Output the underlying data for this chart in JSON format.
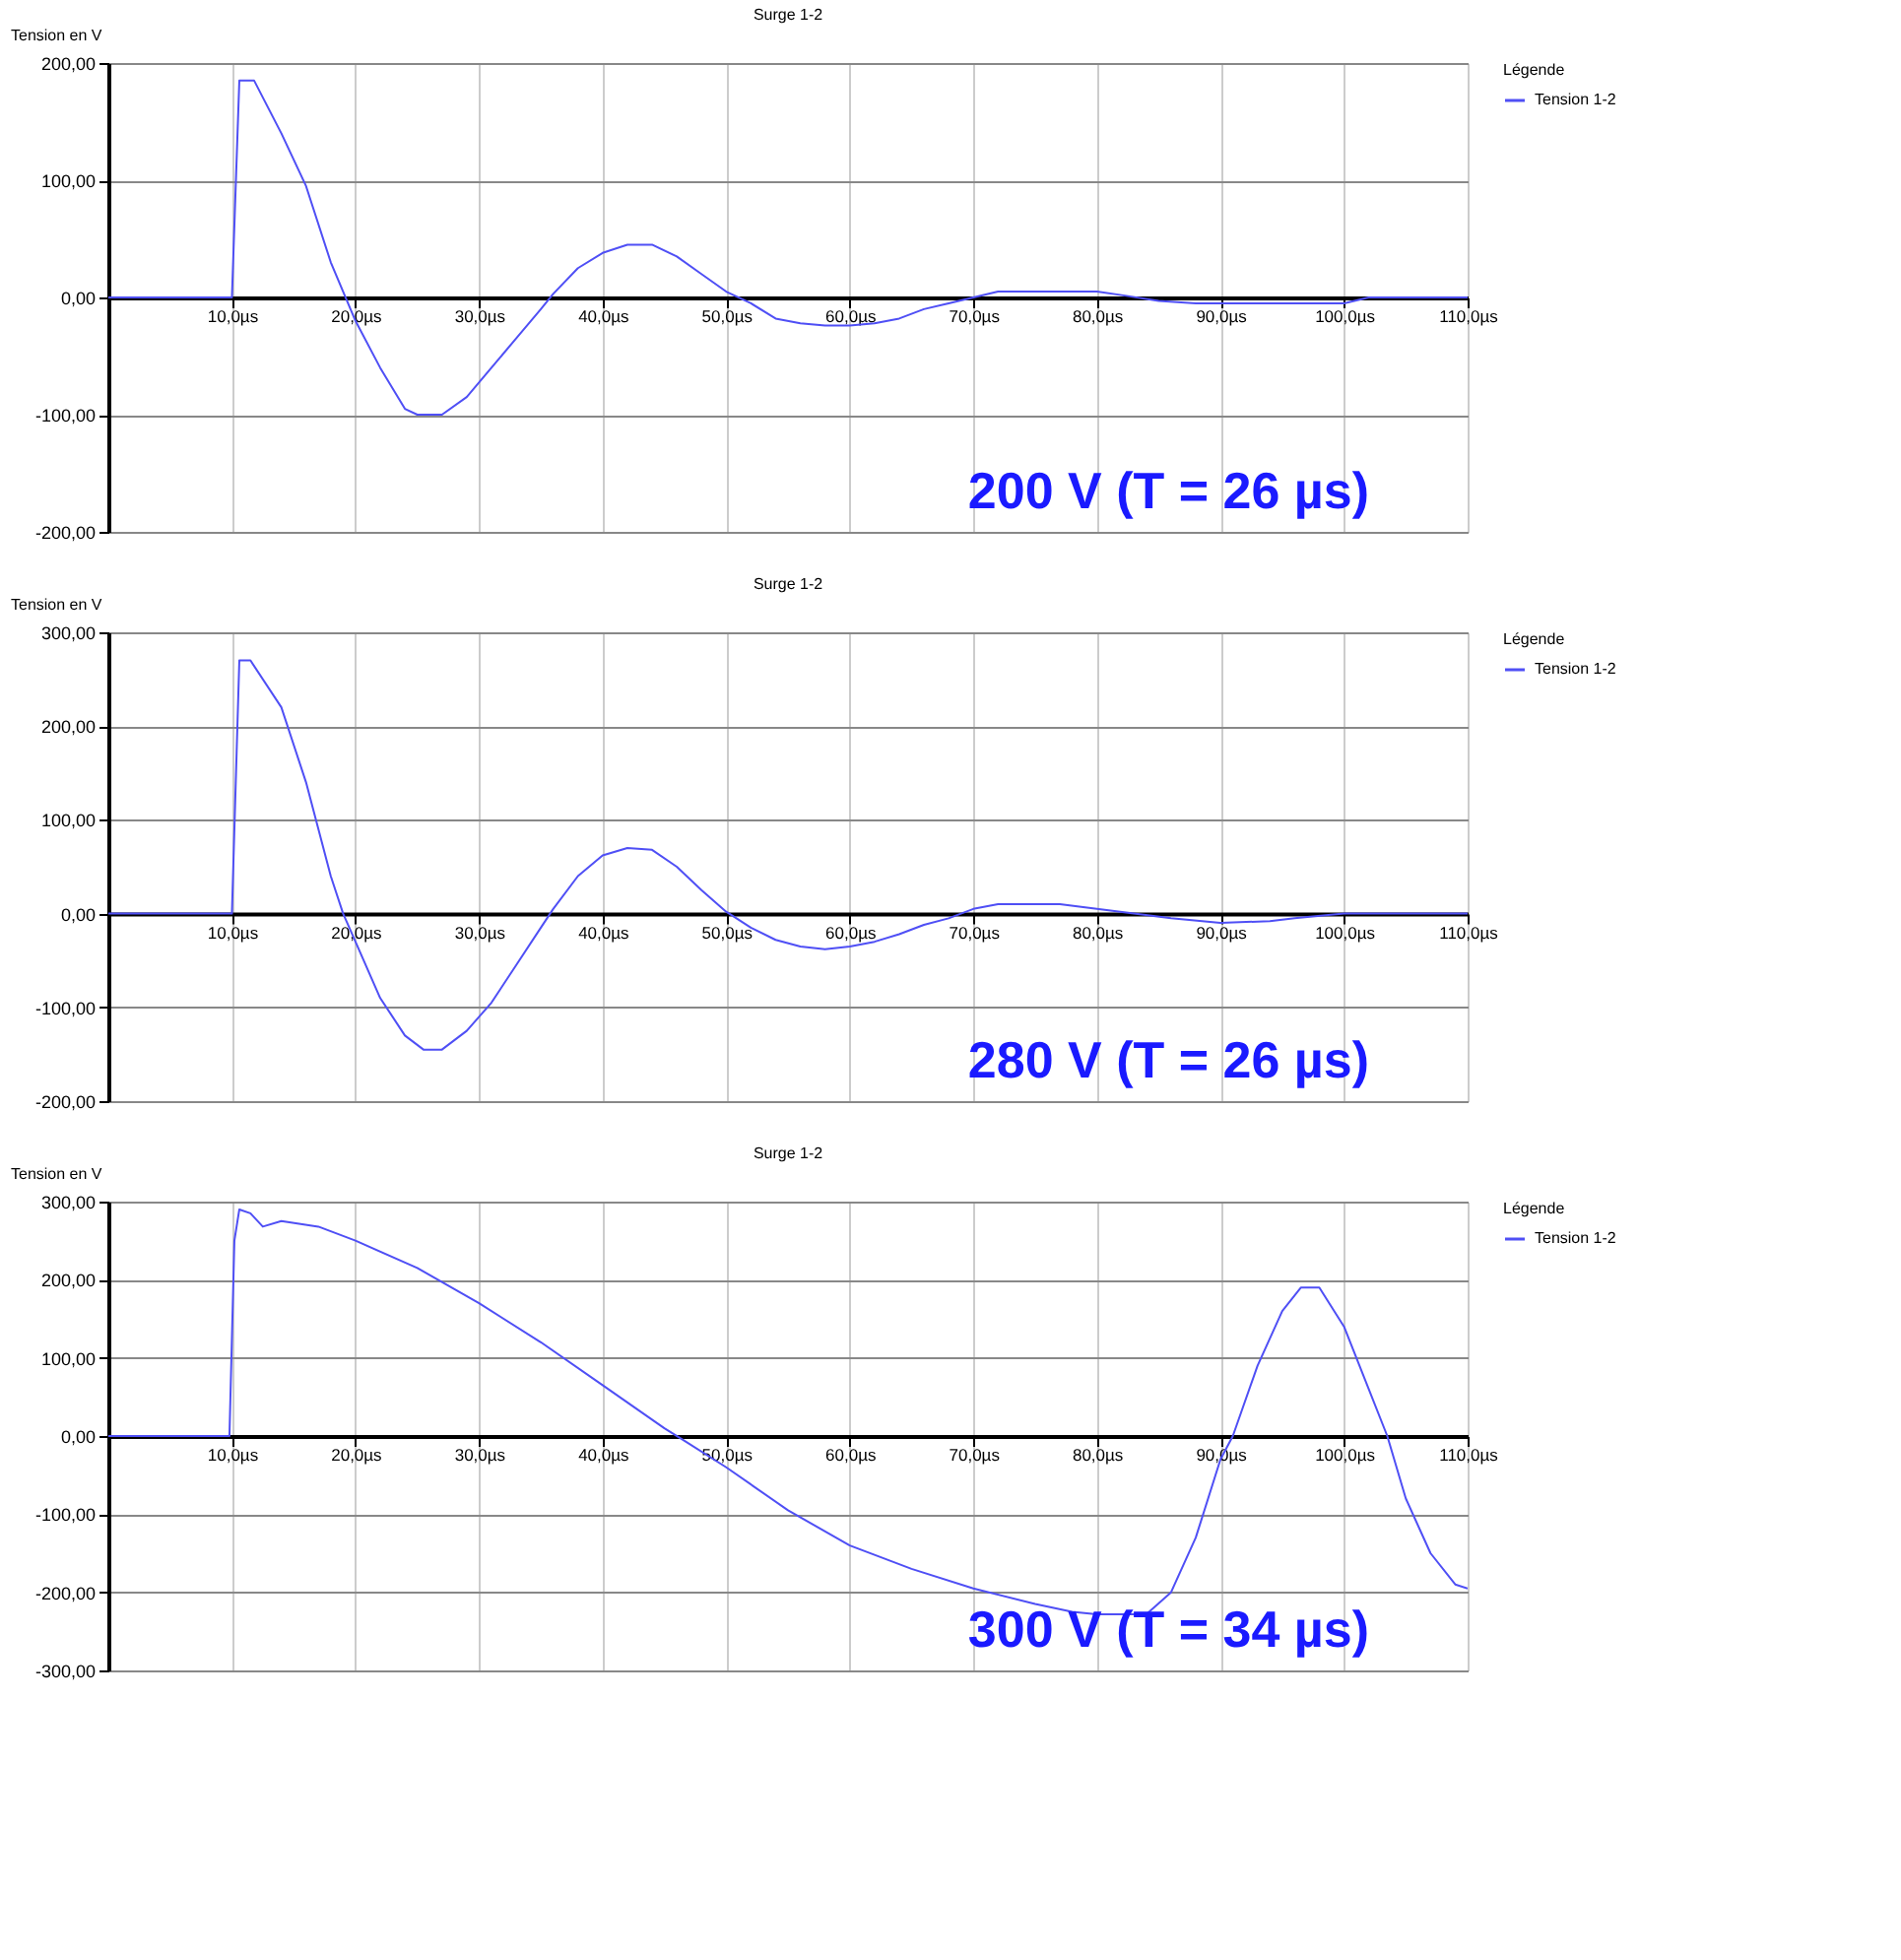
{
  "chart_data": [
    {
      "type": "line",
      "title": "Surge 1-2",
      "ylabel": "Tension en V",
      "legend_title": "Légende",
      "legend": "right",
      "grid": true,
      "x": [
        0,
        9.5,
        10,
        10.6,
        11.8,
        14,
        16,
        18,
        19,
        20,
        22,
        24,
        25,
        27,
        29,
        31,
        33,
        35,
        36,
        38,
        40,
        42,
        44,
        46,
        48,
        50,
        52,
        54,
        56,
        58,
        60,
        62,
        64,
        66,
        68,
        70,
        72,
        76,
        80,
        82,
        85,
        88,
        95,
        100,
        102,
        110
      ],
      "series": [
        {
          "name": "Tension 1-2",
          "color": "#4f4ff5",
          "values": [
            0,
            0,
            0,
            185,
            185,
            140,
            95,
            30,
            5,
            -20,
            -60,
            -95,
            -100,
            -100,
            -85,
            -60,
            -35,
            -10,
            3,
            25,
            38,
            45,
            45,
            35,
            20,
            5,
            -5,
            -18,
            -22,
            -24,
            -24,
            -22,
            -18,
            -10,
            -5,
            0,
            5,
            5,
            5,
            2,
            -3,
            -5,
            -5,
            -5,
            0,
            0
          ]
        }
      ],
      "xlim": [
        0,
        110
      ],
      "xticks": [
        {
          "value": 10,
          "label": "10,0µs"
        },
        {
          "value": 20,
          "label": "20,0µs"
        },
        {
          "value": 30,
          "label": "30,0µs"
        },
        {
          "value": 40,
          "label": "40,0µs"
        },
        {
          "value": 50,
          "label": "50,0µs"
        },
        {
          "value": 60,
          "label": "60,0µs"
        },
        {
          "value": 70,
          "label": "70,0µs"
        },
        {
          "value": 80,
          "label": "80,0µs"
        },
        {
          "value": 90,
          "label": "90,0µs"
        },
        {
          "value": 100,
          "label": "100,0µs"
        },
        {
          "value": 110,
          "label": "110,0µs"
        }
      ],
      "ylim": [
        -200,
        200
      ],
      "yticks": [
        {
          "value": -200,
          "label": "-200,00"
        },
        {
          "value": -100,
          "label": "-100,00"
        },
        {
          "value": 0,
          "label": "0,00"
        },
        {
          "value": 100,
          "label": "100,00"
        },
        {
          "value": 200,
          "label": "200,00"
        }
      ],
      "annotations": [
        "200 V   (T = 26 µs)"
      ]
    },
    {
      "type": "line",
      "title": "Surge 1-2",
      "ylabel": "Tension en V",
      "legend_title": "Légende",
      "legend": "right",
      "grid": true,
      "x": [
        0,
        9.8,
        10,
        10.6,
        11.5,
        14,
        16,
        18,
        19,
        20,
        22,
        24,
        25.5,
        27,
        29,
        31,
        33,
        35,
        36,
        38,
        40,
        42,
        44,
        46,
        48,
        50,
        52,
        54,
        56,
        58,
        60,
        62,
        64,
        66,
        68,
        70,
        72,
        77,
        80,
        83,
        86,
        90,
        94,
        96,
        100,
        110
      ],
      "series": [
        {
          "name": "Tension 1-2",
          "color": "#4f4ff5",
          "values": [
            0,
            0,
            0,
            270,
            270,
            220,
            140,
            40,
            0,
            -30,
            -90,
            -130,
            -145,
            -145,
            -125,
            -95,
            -55,
            -15,
            5,
            40,
            62,
            70,
            68,
            50,
            25,
            2,
            -15,
            -28,
            -35,
            -38,
            -35,
            -30,
            -22,
            -12,
            -5,
            5,
            10,
            10,
            5,
            0,
            -5,
            -10,
            -8,
            -5,
            0,
            0
          ]
        }
      ],
      "xlim": [
        0,
        110
      ],
      "xticks": [
        {
          "value": 10,
          "label": "10,0µs"
        },
        {
          "value": 20,
          "label": "20,0µs"
        },
        {
          "value": 30,
          "label": "30,0µs"
        },
        {
          "value": 40,
          "label": "40,0µs"
        },
        {
          "value": 50,
          "label": "50,0µs"
        },
        {
          "value": 60,
          "label": "60,0µs"
        },
        {
          "value": 70,
          "label": "70,0µs"
        },
        {
          "value": 80,
          "label": "80,0µs"
        },
        {
          "value": 90,
          "label": "90,0µs"
        },
        {
          "value": 100,
          "label": "100,0µs"
        },
        {
          "value": 110,
          "label": "110,0µs"
        }
      ],
      "ylim": [
        -200,
        300
      ],
      "yticks": [
        {
          "value": -200,
          "label": "-200,00"
        },
        {
          "value": -100,
          "label": "-100,00"
        },
        {
          "value": 0,
          "label": "0,00"
        },
        {
          "value": 100,
          "label": "100,00"
        },
        {
          "value": 200,
          "label": "200,00"
        },
        {
          "value": 300,
          "label": "300,00"
        }
      ],
      "annotations": [
        "280 V   (T = 26 µs)"
      ]
    },
    {
      "type": "line",
      "title": "Surge 1-2",
      "ylabel": "Tension en V",
      "legend_title": "Légende",
      "legend": "right",
      "grid": true,
      "x": [
        0,
        9.8,
        10.2,
        10.6,
        11.5,
        12.5,
        14,
        17,
        20,
        25,
        30,
        35,
        40,
        45,
        46.5,
        50,
        55,
        60,
        65,
        70,
        75,
        78,
        80,
        84,
        86,
        88,
        90,
        91,
        93,
        95,
        96.5,
        98,
        100,
        102,
        103.5,
        105,
        107,
        109,
        110
      ],
      "series": [
        {
          "name": "Tension 1-2",
          "color": "#4f4ff5",
          "values": [
            0,
            0,
            250,
            290,
            285,
            268,
            275,
            268,
            250,
            215,
            170,
            120,
            65,
            10,
            -5,
            -40,
            -95,
            -140,
            -170,
            -195,
            -215,
            -225,
            -228,
            -228,
            -200,
            -130,
            -30,
            0,
            90,
            160,
            190,
            190,
            140,
            60,
            0,
            -80,
            -150,
            -190,
            -195
          ]
        }
      ],
      "xlim": [
        0,
        110
      ],
      "xticks": [
        {
          "value": 10,
          "label": "10,0µs"
        },
        {
          "value": 20,
          "label": "20,0µs"
        },
        {
          "value": 30,
          "label": "30,0µs"
        },
        {
          "value": 40,
          "label": "40,0µs"
        },
        {
          "value": 50,
          "label": "50,0µs"
        },
        {
          "value": 60,
          "label": "60,0µs"
        },
        {
          "value": 70,
          "label": "70,0µs"
        },
        {
          "value": 80,
          "label": "80,0µs"
        },
        {
          "value": 90,
          "label": "90,0µs"
        },
        {
          "value": 100,
          "label": "100,0µs"
        },
        {
          "value": 110,
          "label": "110,0µs"
        }
      ],
      "ylim": [
        -300,
        300
      ],
      "yticks": [
        {
          "value": -300,
          "label": "-300,00"
        },
        {
          "value": -200,
          "label": "-200,00"
        },
        {
          "value": -100,
          "label": "-100,00"
        },
        {
          "value": 0,
          "label": "0,00"
        },
        {
          "value": 100,
          "label": "100,00"
        },
        {
          "value": 200,
          "label": "200,00"
        },
        {
          "value": 300,
          "label": "300,00"
        }
      ],
      "annotations": [
        "300 V   (T = 34 µs)"
      ]
    }
  ]
}
